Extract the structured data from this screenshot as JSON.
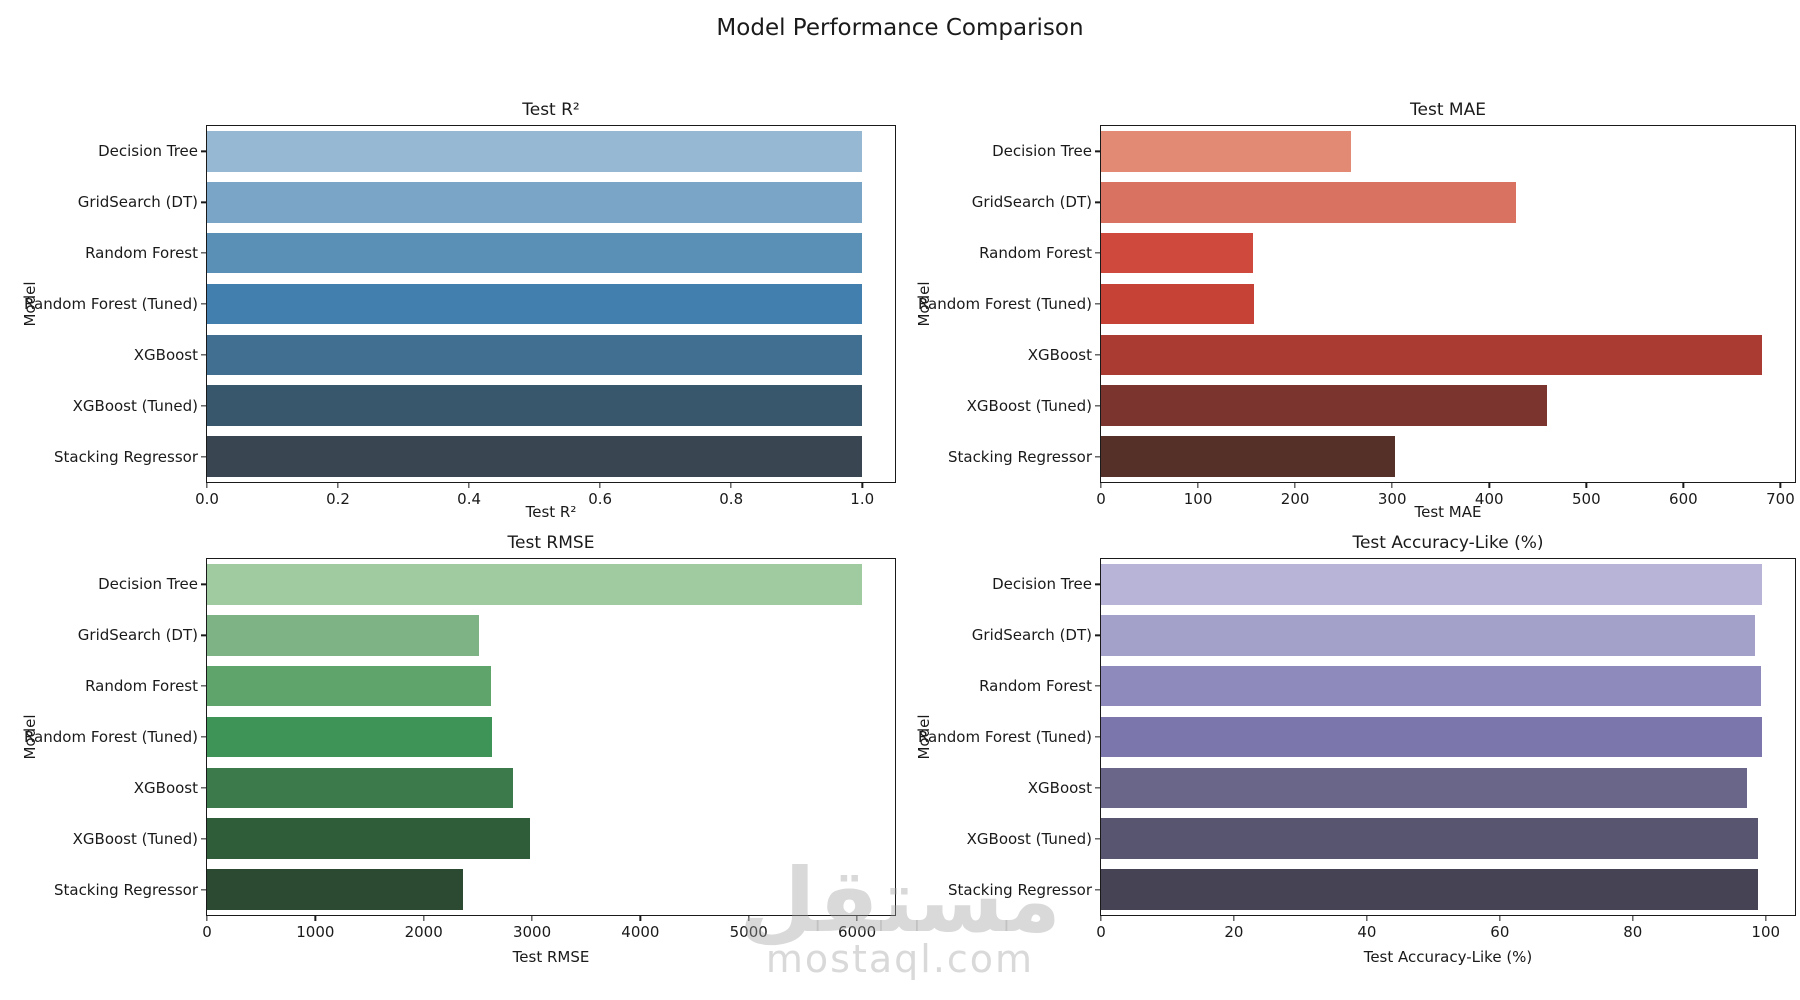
{
  "page": {
    "suptitle": "Model Performance Comparison",
    "watermark": {
      "logo_text": "مستقل",
      "site_text": "mostaql.com"
    }
  },
  "chart_data": [
    {
      "type": "bar",
      "orientation": "horizontal",
      "title": "Test R²",
      "xlabel": "Test R²",
      "ylabel": "Model",
      "categories": [
        "Decision Tree",
        "GridSearch (DT)",
        "Random Forest",
        "Random Forest (Tuned)",
        "XGBoost",
        "XGBoost (Tuned)",
        "Stacking Regressor"
      ],
      "values": [
        1.0,
        1.0,
        1.0,
        1.0,
        1.0,
        1.0,
        1.0
      ],
      "xlim": [
        0,
        1.05
      ],
      "xticks": [
        {
          "v": 0.0,
          "label": "0.0"
        },
        {
          "v": 0.2,
          "label": "0.2"
        },
        {
          "v": 0.4,
          "label": "0.4"
        },
        {
          "v": 0.6,
          "label": "0.6"
        },
        {
          "v": 0.8,
          "label": "0.8"
        },
        {
          "v": 1.0,
          "label": "1.0"
        }
      ],
      "palette": [
        "#96b8d3",
        "#7aa5c6",
        "#5b90b6",
        "#437fae",
        "#406f92",
        "#38576c",
        "#394551"
      ],
      "grid": false,
      "legend": false
    },
    {
      "type": "bar",
      "orientation": "horizontal",
      "title": "Test MAE",
      "xlabel": "Test MAE",
      "ylabel": "Model",
      "categories": [
        "Decision Tree",
        "GridSearch (DT)",
        "Random Forest",
        "Random Forest (Tuned)",
        "XGBoost",
        "XGBoost (Tuned)",
        "Stacking Regressor"
      ],
      "values": [
        258,
        428,
        157,
        158,
        681,
        460,
        303
      ],
      "xlim": [
        0,
        715
      ],
      "xticks": [
        {
          "v": 0,
          "label": "0"
        },
        {
          "v": 100,
          "label": "100"
        },
        {
          "v": 200,
          "label": "200"
        },
        {
          "v": 300,
          "label": "300"
        },
        {
          "v": 400,
          "label": "400"
        },
        {
          "v": 500,
          "label": "500"
        },
        {
          "v": 600,
          "label": "600"
        },
        {
          "v": 700,
          "label": "700"
        }
      ],
      "palette": [
        "#e28a73",
        "#d97260",
        "#d0493d",
        "#c64136",
        "#a93b33",
        "#7b352e",
        "#553028"
      ],
      "grid": false,
      "legend": false
    },
    {
      "type": "bar",
      "orientation": "horizontal",
      "title": "Test RMSE",
      "xlabel": "Test RMSE",
      "ylabel": "Model",
      "categories": [
        "Decision Tree",
        "GridSearch (DT)",
        "Random Forest",
        "Random Forest (Tuned)",
        "XGBoost",
        "XGBoost (Tuned)",
        "Stacking Regressor"
      ],
      "values": [
        6050,
        2510,
        2620,
        2630,
        2820,
        2980,
        2360
      ],
      "xlim": [
        0,
        6350
      ],
      "xticks": [
        {
          "v": 0,
          "label": "0"
        },
        {
          "v": 1000,
          "label": "1000"
        },
        {
          "v": 2000,
          "label": "2000"
        },
        {
          "v": 3000,
          "label": "3000"
        },
        {
          "v": 4000,
          "label": "4000"
        },
        {
          "v": 5000,
          "label": "5000"
        },
        {
          "v": 6000,
          "label": "6000"
        }
      ],
      "palette": [
        "#a0cba0",
        "#7eb385",
        "#5ea46b",
        "#3e9457",
        "#3d7a4b",
        "#2f5d3a",
        "#2c4a31"
      ],
      "grid": false,
      "legend": false
    },
    {
      "type": "bar",
      "orientation": "horizontal",
      "title": "Test Accuracy-Like (%)",
      "xlabel": "Test Accuracy-Like (%)",
      "ylabel": "Model",
      "categories": [
        "Decision Tree",
        "GridSearch (DT)",
        "Random Forest",
        "Random Forest (Tuned)",
        "XGBoost",
        "XGBoost (Tuned)",
        "Stacking Regressor"
      ],
      "values": [
        99.4,
        98.4,
        99.3,
        99.4,
        97.2,
        98.8,
        98.8
      ],
      "xlim": [
        0,
        104.4
      ],
      "xticks": [
        {
          "v": 0,
          "label": "0"
        },
        {
          "v": 20,
          "label": "20"
        },
        {
          "v": 40,
          "label": "40"
        },
        {
          "v": 60,
          "label": "60"
        },
        {
          "v": 80,
          "label": "80"
        },
        {
          "v": 100,
          "label": "100"
        }
      ],
      "palette": [
        "#b7b4d7",
        "#a3a0c9",
        "#8e8bbc",
        "#7b77ad",
        "#696689",
        "#585570",
        "#454354"
      ],
      "grid": false,
      "legend": false
    }
  ]
}
